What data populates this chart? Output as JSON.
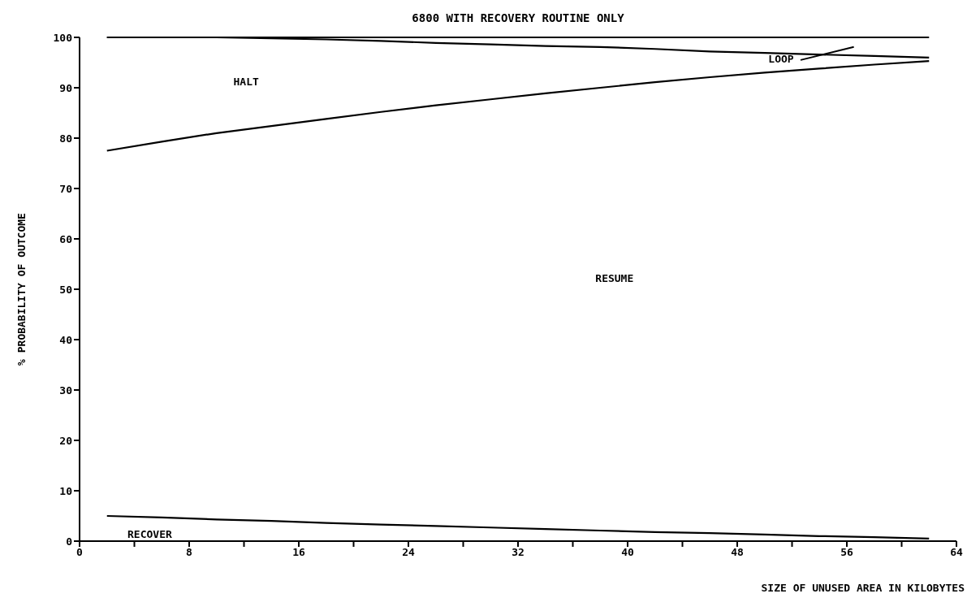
{
  "chart_data": {
    "type": "line",
    "title": "6800 WITH RECOVERY ROUTINE ONLY",
    "xlabel": "SIZE OF UNUSED AREA IN KILOBYTES",
    "ylabel": "% PROBABILITY OF OUTCOME",
    "x": [
      2,
      6,
      10,
      14,
      18,
      22,
      26,
      30,
      34,
      38,
      42,
      46,
      50,
      54,
      58,
      62
    ],
    "series": [
      {
        "color": "#000000",
        "values": [
          100,
          100,
          100,
          100,
          100,
          100,
          100,
          100,
          100,
          100,
          100,
          100,
          100,
          100,
          100,
          100
        ]
      },
      {
        "color": "#000000",
        "values": [
          100,
          100,
          100,
          99.8,
          99.6,
          99.3,
          98.9,
          98.6,
          98.3,
          98.1,
          97.7,
          97.2,
          96.9,
          96.6,
          96.3,
          96.0
        ]
      },
      {
        "color": "#000000",
        "values": [
          77.5,
          79.3,
          81,
          82.4,
          83.8,
          85.2,
          86.5,
          87.7,
          88.9,
          90,
          91.1,
          92.1,
          93,
          93.8,
          94.6,
          95.3
        ]
      },
      {
        "color": "#000000",
        "values": [
          5,
          4.7,
          4.3,
          4,
          3.6,
          3.3,
          3,
          2.7,
          2.4,
          2.1,
          1.8,
          1.6,
          1.3,
          1.0,
          0.8,
          0.5
        ]
      }
    ],
    "xlim": [
      0,
      64
    ],
    "ylim": [
      0,
      100
    ],
    "xticks": [
      0,
      {
        "value": 4,
        "label": null
      },
      8,
      {
        "value": 12,
        "label": null
      },
      16,
      {
        "value": 20,
        "label": null
      },
      24,
      {
        "value": 28,
        "label": null
      },
      32,
      {
        "value": 36,
        "label": null
      },
      40,
      {
        "value": 44,
        "label": null
      },
      48,
      {
        "value": 52,
        "label": null
      },
      56,
      {
        "value": 60,
        "label": null
      },
      64
    ],
    "yticks": [
      0,
      10,
      20,
      30,
      40,
      50,
      60,
      70,
      80,
      90,
      100
    ],
    "grid": false,
    "marker": "none",
    "line_style": "solid",
    "annotations": [
      "HALT",
      "RESUME",
      "LOOP",
      "RECOVER"
    ]
  }
}
